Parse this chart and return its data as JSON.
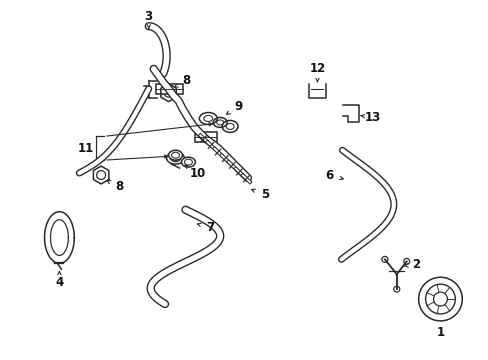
{
  "background_color": "#ffffff",
  "line_color": "#2a2a2a",
  "figsize": [
    4.89,
    3.6
  ],
  "dpi": 100,
  "components": {
    "label_fontsize": 8.5,
    "label_color": "#111111"
  }
}
